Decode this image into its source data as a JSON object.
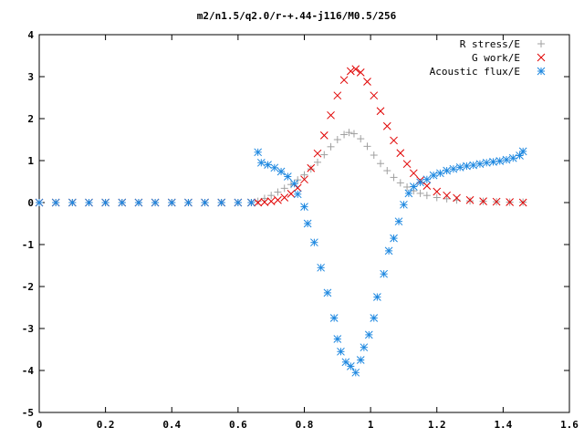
{
  "chart_data": {
    "type": "scatter",
    "title": "m2/n1.5/q2.0/r-+.44-j116/M0.5/256",
    "xlabel": "",
    "ylabel": "",
    "xlim": [
      0,
      1.6
    ],
    "ylim": [
      -5,
      4
    ],
    "x_ticks": [
      "0",
      "0.2",
      "0.4",
      "0.6",
      "0.8",
      "1",
      "1.2",
      "1.4",
      "1.6"
    ],
    "y_ticks": [
      "4",
      "3",
      "2",
      "1",
      "0",
      "-1",
      "-2",
      "-3",
      "-4",
      "-5"
    ],
    "legend_position": "top-right",
    "grid": false,
    "series": [
      {
        "name": "R stress/E",
        "marker": "plus",
        "color": "#a0a0a0",
        "points": [
          [
            0.0,
            0.0
          ],
          [
            0.05,
            0.0
          ],
          [
            0.1,
            0.0
          ],
          [
            0.15,
            0.0
          ],
          [
            0.2,
            0.0
          ],
          [
            0.25,
            0.0
          ],
          [
            0.3,
            0.0
          ],
          [
            0.35,
            0.0
          ],
          [
            0.4,
            0.0
          ],
          [
            0.45,
            0.0
          ],
          [
            0.5,
            0.0
          ],
          [
            0.55,
            0.0
          ],
          [
            0.6,
            0.0
          ],
          [
            0.64,
            0.0
          ],
          [
            0.66,
            0.03
          ],
          [
            0.68,
            0.1
          ],
          [
            0.7,
            0.17
          ],
          [
            0.72,
            0.25
          ],
          [
            0.74,
            0.34
          ],
          [
            0.76,
            0.43
          ],
          [
            0.78,
            0.54
          ],
          [
            0.8,
            0.66
          ],
          [
            0.82,
            0.8
          ],
          [
            0.84,
            0.96
          ],
          [
            0.86,
            1.14
          ],
          [
            0.88,
            1.33
          ],
          [
            0.9,
            1.5
          ],
          [
            0.92,
            1.62
          ],
          [
            0.935,
            1.67
          ],
          [
            0.95,
            1.64
          ],
          [
            0.97,
            1.52
          ],
          [
            0.99,
            1.34
          ],
          [
            1.01,
            1.13
          ],
          [
            1.03,
            0.93
          ],
          [
            1.05,
            0.76
          ],
          [
            1.07,
            0.6
          ],
          [
            1.09,
            0.47
          ],
          [
            1.11,
            0.37
          ],
          [
            1.13,
            0.28
          ],
          [
            1.15,
            0.22
          ],
          [
            1.17,
            0.17
          ],
          [
            1.2,
            0.12
          ],
          [
            1.23,
            0.09
          ],
          [
            1.26,
            0.06
          ],
          [
            1.3,
            0.04
          ],
          [
            1.34,
            0.03
          ],
          [
            1.38,
            0.02
          ],
          [
            1.42,
            0.01
          ],
          [
            1.46,
            0.01
          ]
        ]
      },
      {
        "name": "G work/E",
        "marker": "cross",
        "color": "#e00000",
        "points": [
          [
            0.0,
            0.0
          ],
          [
            0.05,
            0.0
          ],
          [
            0.1,
            0.0
          ],
          [
            0.15,
            0.0
          ],
          [
            0.2,
            0.0
          ],
          [
            0.25,
            0.0
          ],
          [
            0.3,
            0.0
          ],
          [
            0.35,
            0.0
          ],
          [
            0.4,
            0.0
          ],
          [
            0.45,
            0.0
          ],
          [
            0.5,
            0.0
          ],
          [
            0.55,
            0.0
          ],
          [
            0.6,
            0.0
          ],
          [
            0.64,
            0.0
          ],
          [
            0.66,
            0.0
          ],
          [
            0.68,
            0.01
          ],
          [
            0.7,
            0.03
          ],
          [
            0.72,
            0.06
          ],
          [
            0.74,
            0.12
          ],
          [
            0.76,
            0.21
          ],
          [
            0.78,
            0.35
          ],
          [
            0.8,
            0.55
          ],
          [
            0.82,
            0.82
          ],
          [
            0.84,
            1.17
          ],
          [
            0.86,
            1.6
          ],
          [
            0.88,
            2.08
          ],
          [
            0.9,
            2.55
          ],
          [
            0.92,
            2.92
          ],
          [
            0.94,
            3.13
          ],
          [
            0.955,
            3.18
          ],
          [
            0.97,
            3.1
          ],
          [
            0.99,
            2.88
          ],
          [
            1.01,
            2.55
          ],
          [
            1.03,
            2.18
          ],
          [
            1.05,
            1.82
          ],
          [
            1.07,
            1.48
          ],
          [
            1.09,
            1.18
          ],
          [
            1.11,
            0.92
          ],
          [
            1.13,
            0.7
          ],
          [
            1.15,
            0.53
          ],
          [
            1.17,
            0.4
          ],
          [
            1.2,
            0.26
          ],
          [
            1.23,
            0.17
          ],
          [
            1.26,
            0.11
          ],
          [
            1.3,
            0.06
          ],
          [
            1.34,
            0.03
          ],
          [
            1.38,
            0.02
          ],
          [
            1.42,
            0.01
          ],
          [
            1.46,
            0.0
          ]
        ]
      },
      {
        "name": "Acoustic flux/E",
        "marker": "star",
        "color": "#1e88e0",
        "points": [
          [
            0.0,
            0.0
          ],
          [
            0.05,
            0.0
          ],
          [
            0.1,
            0.0
          ],
          [
            0.15,
            0.0
          ],
          [
            0.2,
            0.0
          ],
          [
            0.25,
            0.0
          ],
          [
            0.3,
            0.0
          ],
          [
            0.35,
            0.0
          ],
          [
            0.4,
            0.0
          ],
          [
            0.45,
            0.0
          ],
          [
            0.5,
            0.0
          ],
          [
            0.55,
            0.0
          ],
          [
            0.6,
            0.0
          ],
          [
            0.64,
            0.0
          ],
          [
            0.66,
            1.2
          ],
          [
            0.67,
            0.95
          ],
          [
            0.69,
            0.9
          ],
          [
            0.71,
            0.83
          ],
          [
            0.73,
            0.74
          ],
          [
            0.75,
            0.62
          ],
          [
            0.77,
            0.45
          ],
          [
            0.78,
            0.2
          ],
          [
            0.8,
            -0.1
          ],
          [
            0.81,
            -0.5
          ],
          [
            0.83,
            -0.95
          ],
          [
            0.85,
            -1.55
          ],
          [
            0.87,
            -2.15
          ],
          [
            0.89,
            -2.75
          ],
          [
            0.9,
            -3.25
          ],
          [
            0.91,
            -3.55
          ],
          [
            0.925,
            -3.8
          ],
          [
            0.94,
            -3.9
          ],
          [
            0.955,
            -4.05
          ],
          [
            0.97,
            -3.75
          ],
          [
            0.98,
            -3.45
          ],
          [
            0.995,
            -3.15
          ],
          [
            1.01,
            -2.75
          ],
          [
            1.02,
            -2.25
          ],
          [
            1.04,
            -1.7
          ],
          [
            1.055,
            -1.15
          ],
          [
            1.07,
            -0.85
          ],
          [
            1.085,
            -0.45
          ],
          [
            1.1,
            -0.05
          ],
          [
            1.115,
            0.22
          ],
          [
            1.13,
            0.38
          ],
          [
            1.15,
            0.48
          ],
          [
            1.17,
            0.55
          ],
          [
            1.19,
            0.65
          ],
          [
            1.21,
            0.7
          ],
          [
            1.23,
            0.76
          ],
          [
            1.25,
            0.8
          ],
          [
            1.27,
            0.84
          ],
          [
            1.29,
            0.87
          ],
          [
            1.31,
            0.89
          ],
          [
            1.33,
            0.92
          ],
          [
            1.35,
            0.95
          ],
          [
            1.37,
            0.97
          ],
          [
            1.39,
            0.99
          ],
          [
            1.41,
            1.02
          ],
          [
            1.43,
            1.06
          ],
          [
            1.45,
            1.12
          ],
          [
            1.46,
            1.22
          ]
        ]
      }
    ]
  }
}
